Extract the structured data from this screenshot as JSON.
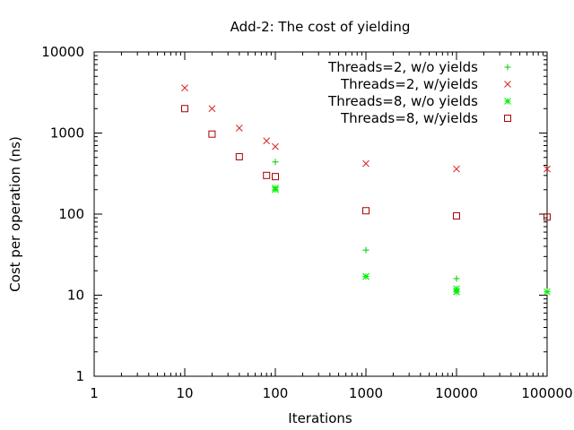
{
  "chart_data": {
    "type": "scatter",
    "title": "Add-2: The cost of yielding",
    "xlabel": "Iterations",
    "ylabel": "Cost per operation (ns)",
    "xscale": "log",
    "yscale": "log",
    "xlim": [
      1,
      100000
    ],
    "ylim": [
      1,
      10000
    ],
    "x_tick_labels": [
      "1",
      "10",
      "100",
      "1000",
      "10000",
      "100000"
    ],
    "y_tick_labels": [
      "1",
      "10",
      "100",
      "1000",
      "10000"
    ],
    "legend_position": "top-right",
    "grid": false,
    "series": [
      {
        "name": "Threads=2, w/o yields",
        "marker": "plus",
        "color": "#00cc00",
        "points": [
          [
            100,
            440
          ],
          [
            1000,
            36
          ],
          [
            10000,
            16
          ],
          [
            100000,
            11
          ]
        ]
      },
      {
        "name": "Threads=2, w/yields",
        "marker": "cross",
        "color": "#dd2222",
        "points": [
          [
            10,
            3600
          ],
          [
            20,
            2000
          ],
          [
            40,
            1150
          ],
          [
            80,
            800
          ],
          [
            100,
            680
          ],
          [
            1000,
            420
          ],
          [
            10000,
            360
          ],
          [
            100000,
            360
          ]
        ]
      },
      {
        "name": "Threads=8, w/o yields",
        "marker": "star",
        "color": "#00ee00",
        "points": [
          [
            100,
            210
          ],
          [
            100,
            200
          ],
          [
            1000,
            17
          ],
          [
            1000,
            17
          ],
          [
            10000,
            12
          ],
          [
            10000,
            11
          ],
          [
            10000,
            11
          ],
          [
            100000,
            11
          ]
        ]
      },
      {
        "name": "Threads=8, w/yields",
        "marker": "square",
        "color": "#aa0000",
        "points": [
          [
            10,
            2000
          ],
          [
            20,
            970
          ],
          [
            40,
            510
          ],
          [
            80,
            300
          ],
          [
            100,
            290
          ],
          [
            1000,
            110
          ],
          [
            10000,
            95
          ],
          [
            100000,
            92
          ]
        ]
      }
    ]
  }
}
